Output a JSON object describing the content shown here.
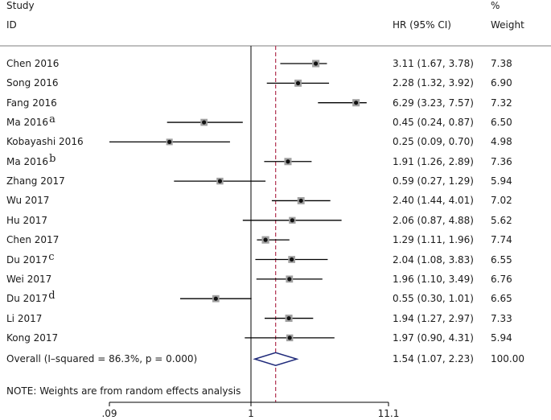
{
  "headers": {
    "study": "Study",
    "id": "ID",
    "hr": "HR (95% CI)",
    "pct": "%",
    "weight": "Weight"
  },
  "note": "NOTE: Weights are from random effects analysis",
  "colors": {
    "ci_line": "#000000",
    "ref_dashed": "#b03050",
    "diamond": "#1f2a7a",
    "marker": "#808080"
  },
  "chart_data": {
    "type": "forest",
    "xscale": "log",
    "xlim": [
      0.09,
      11.1
    ],
    "xticks": [
      {
        "value": 0.09,
        "label": ".09"
      },
      {
        "value": 1,
        "label": "1"
      },
      {
        "value": 11.1,
        "label": "11.1"
      }
    ],
    "null_line": 1,
    "overall_line": 1.54,
    "studies": [
      {
        "study": "Chen 2016",
        "sup": "",
        "hr": 3.11,
        "lo": 1.67,
        "hi": 3.78,
        "hr_text": "3.11 (1.67, 3.78)",
        "weight": 7.38,
        "weight_text": "7.38"
      },
      {
        "study": "Song 2016",
        "sup": "",
        "hr": 2.28,
        "lo": 1.32,
        "hi": 3.92,
        "hr_text": "2.28 (1.32, 3.92)",
        "weight": 6.9,
        "weight_text": "6.90"
      },
      {
        "study": "Fang 2016",
        "sup": "",
        "hr": 6.29,
        "lo": 3.23,
        "hi": 7.57,
        "hr_text": "6.29 (3.23, 7.57)",
        "weight": 7.32,
        "weight_text": "7.32"
      },
      {
        "study": "Ma 2016",
        "sup": "a",
        "hr": 0.45,
        "lo": 0.24,
        "hi": 0.87,
        "hr_text": "0.45 (0.24, 0.87)",
        "weight": 6.5,
        "weight_text": "6.50"
      },
      {
        "study": "Kobayashi 2016",
        "sup": "",
        "hr": 0.25,
        "lo": 0.09,
        "hi": 0.7,
        "hr_text": "0.25 (0.09, 0.70)",
        "weight": 4.98,
        "weight_text": "4.98"
      },
      {
        "study": "Ma 2016",
        "sup": "b",
        "hr": 1.91,
        "lo": 1.26,
        "hi": 2.89,
        "hr_text": "1.91 (1.26, 2.89)",
        "weight": 7.36,
        "weight_text": "7.36"
      },
      {
        "study": "Zhang 2017",
        "sup": "",
        "hr": 0.59,
        "lo": 0.27,
        "hi": 1.29,
        "hr_text": "0.59 (0.27, 1.29)",
        "weight": 5.94,
        "weight_text": "5.94"
      },
      {
        "study": "Wu 2017",
        "sup": "",
        "hr": 2.4,
        "lo": 1.44,
        "hi": 4.01,
        "hr_text": "2.40 (1.44, 4.01)",
        "weight": 7.02,
        "weight_text": "7.02"
      },
      {
        "study": "Hu 2017",
        "sup": "",
        "hr": 2.06,
        "lo": 0.87,
        "hi": 4.88,
        "hr_text": "2.06 (0.87, 4.88)",
        "weight": 5.62,
        "weight_text": "5.62"
      },
      {
        "study": "Chen 2017",
        "sup": "",
        "hr": 1.29,
        "lo": 1.11,
        "hi": 1.96,
        "hr_text": "1.29 (1.11, 1.96)",
        "weight": 7.74,
        "weight_text": "7.74"
      },
      {
        "study": "Du 2017",
        "sup": "c",
        "hr": 2.04,
        "lo": 1.08,
        "hi": 3.83,
        "hr_text": "2.04 (1.08, 3.83)",
        "weight": 6.55,
        "weight_text": "6.55"
      },
      {
        "study": "Wei 2017",
        "sup": "",
        "hr": 1.96,
        "lo": 1.1,
        "hi": 3.49,
        "hr_text": "1.96 (1.10, 3.49)",
        "weight": 6.76,
        "weight_text": "6.76"
      },
      {
        "study": "Du 2017",
        "sup": "d",
        "hr": 0.55,
        "lo": 0.3,
        "hi": 1.01,
        "hr_text": "0.55 (0.30, 1.01)",
        "weight": 6.65,
        "weight_text": "6.65"
      },
      {
        "study": "Li 2017",
        "sup": "",
        "hr": 1.94,
        "lo": 1.27,
        "hi": 2.97,
        "hr_text": "1.94 (1.27, 2.97)",
        "weight": 7.33,
        "weight_text": "7.33"
      },
      {
        "study": "Kong 2017",
        "sup": "",
        "hr": 1.97,
        "lo": 0.9,
        "hi": 4.31,
        "hr_text": "1.97 (0.90, 4.31)",
        "weight": 5.94,
        "weight_text": "5.94"
      }
    ],
    "overall": {
      "label": "Overall  (I–squared = 86.3%, p = 0.000)",
      "hr": 1.54,
      "lo": 1.07,
      "hi": 2.23,
      "hr_text": "1.54 (1.07, 2.23)",
      "weight_text": "100.00"
    }
  }
}
